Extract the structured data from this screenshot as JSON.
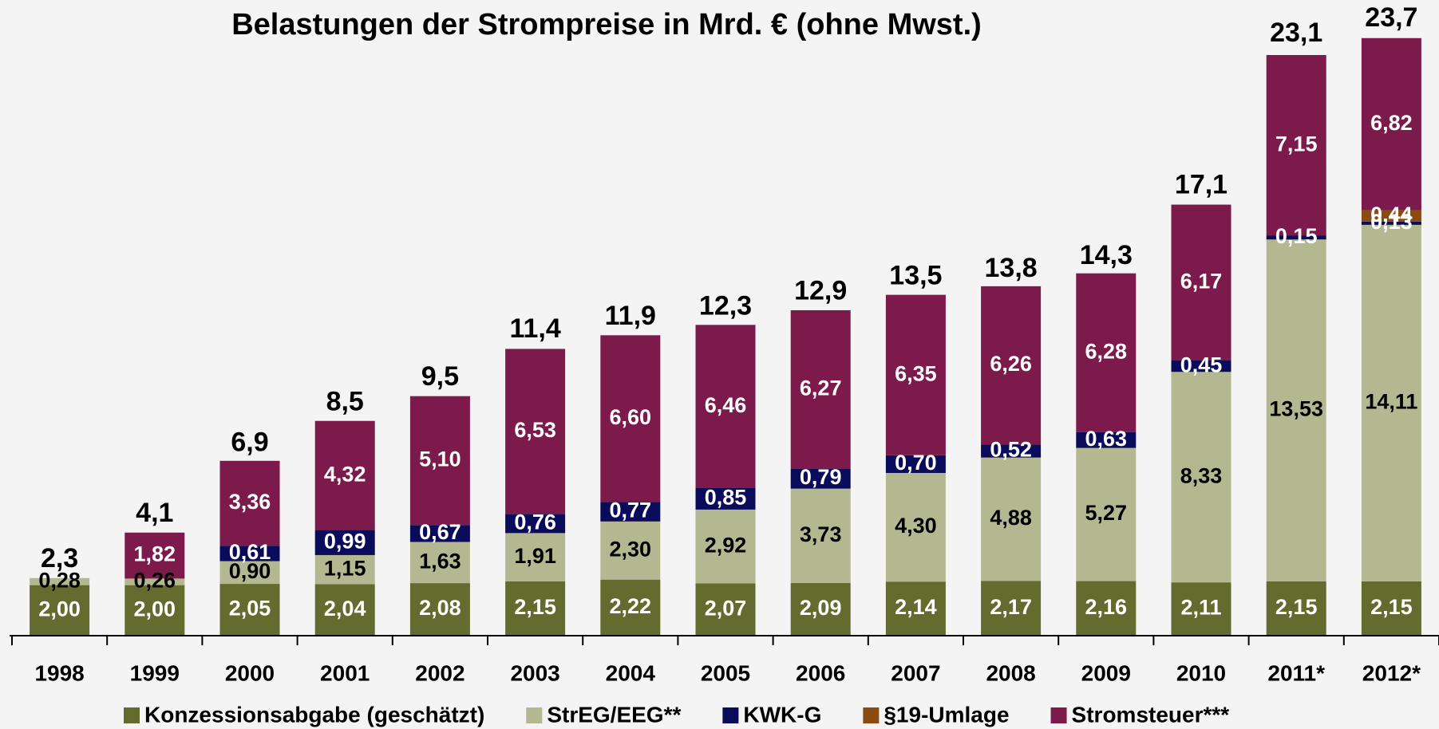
{
  "chart_data": {
    "type": "stacked_bar",
    "title": "Belastungen der Strompreise in Mrd. € (ohne Mwst.)",
    "categories": [
      "1998",
      "1999",
      "2000",
      "2001",
      "2002",
      "2003",
      "2004",
      "2005",
      "2006",
      "2007",
      "2008",
      "2009",
      "2010",
      "2011*",
      "2012*"
    ],
    "ylim": [
      0,
      25
    ],
    "series": [
      {
        "name": "Konzessionsabgabe (geschätzt)",
        "color": "#636b2f",
        "label_color": "#ffffff",
        "values": [
          2.0,
          2.0,
          2.05,
          2.04,
          2.08,
          2.15,
          2.22,
          2.07,
          2.09,
          2.14,
          2.17,
          2.16,
          2.11,
          2.15,
          2.15
        ],
        "value_labels": [
          "2,00",
          "2,00",
          "2,05",
          "2,04",
          "2,08",
          "2,15",
          "2,22",
          "2,07",
          "2,09",
          "2,14",
          "2,17",
          "2,16",
          "2,11",
          "2,15",
          "2,15"
        ]
      },
      {
        "name": "StrEG/EEG**",
        "color": "#b3b891",
        "label_color": "#000000",
        "values": [
          0.28,
          0.26,
          0.9,
          1.15,
          1.63,
          1.91,
          2.3,
          2.92,
          3.73,
          4.3,
          4.88,
          5.27,
          8.33,
          13.53,
          14.11
        ],
        "value_labels": [
          "0,28",
          "0,26",
          "0,90",
          "1,15",
          "1,63",
          "1,91",
          "2,30",
          "2,92",
          "3,73",
          "4,30",
          "4,88",
          "5,27",
          "8,33",
          "13,53",
          "14,11"
        ]
      },
      {
        "name": "KWK-G",
        "color": "#0b0b5c",
        "label_color": "#ffffff",
        "values": [
          null,
          null,
          0.61,
          0.99,
          0.67,
          0.76,
          0.77,
          0.85,
          0.79,
          0.7,
          0.52,
          0.63,
          0.45,
          0.15,
          0.13
        ],
        "value_labels": [
          null,
          null,
          "0,61",
          "0,99",
          "0,67",
          "0,76",
          "0,77",
          "0,85",
          "0,79",
          "0,70",
          "0,52",
          "0,63",
          "0,45",
          "0,15",
          "0,13"
        ]
      },
      {
        "name": "§19-Umlage",
        "color": "#8b4a10",
        "label_color": "#ffffff",
        "values": [
          null,
          null,
          null,
          null,
          null,
          null,
          null,
          null,
          null,
          null,
          null,
          null,
          null,
          null,
          0.44
        ],
        "value_labels": [
          null,
          null,
          null,
          null,
          null,
          null,
          null,
          null,
          null,
          null,
          null,
          null,
          null,
          null,
          "0,44"
        ]
      },
      {
        "name": "Stromsteuer***",
        "color": "#7b1a4b",
        "label_color": "#ffffff",
        "values": [
          null,
          1.82,
          3.36,
          4.32,
          5.1,
          6.53,
          6.6,
          6.46,
          6.27,
          6.35,
          6.26,
          6.28,
          6.17,
          7.15,
          6.82
        ],
        "value_labels": [
          null,
          "1,82",
          "3,36",
          "4,32",
          "5,10",
          "6,53",
          "6,60",
          "6,46",
          "6,27",
          "6,35",
          "6,26",
          "6,28",
          "6,17",
          "7,15",
          "6,82"
        ]
      }
    ],
    "totals": {
      "values": [
        2.3,
        4.1,
        6.9,
        8.5,
        9.5,
        11.4,
        11.9,
        12.3,
        12.9,
        13.5,
        13.8,
        14.3,
        17.1,
        23.1,
        23.7
      ],
      "value_labels": [
        "2,3",
        "4,1",
        "6,9",
        "8,5",
        "9,5",
        "11,4",
        "11,9",
        "12,3",
        "12,9",
        "13,5",
        "13,8",
        "14,3",
        "17,1",
        "23,1",
        "23,7"
      ]
    }
  }
}
